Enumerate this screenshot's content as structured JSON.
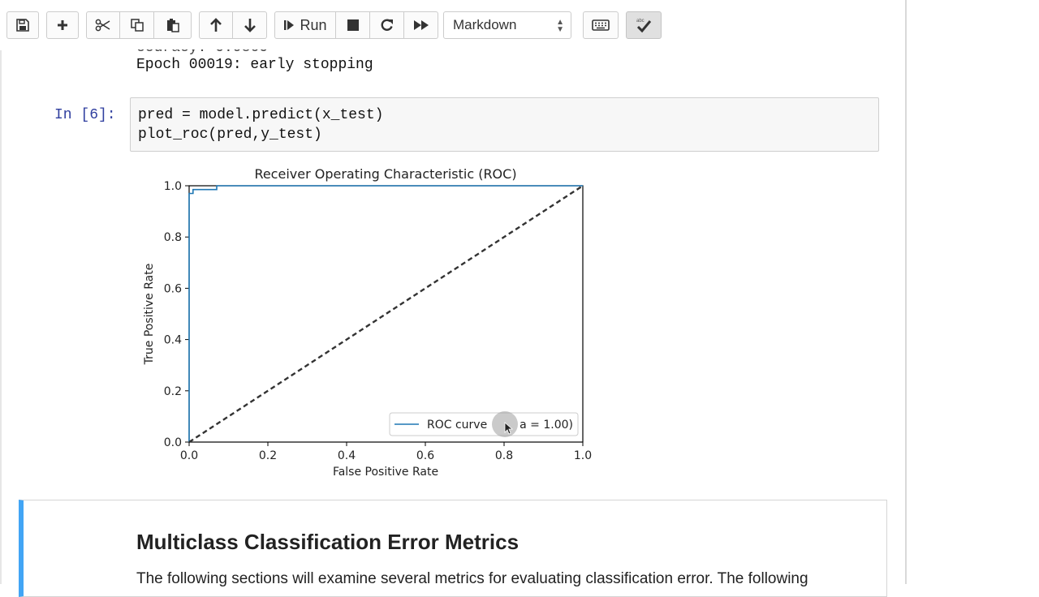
{
  "toolbar": {
    "buttons": [
      {
        "name": "save",
        "icon": "save-icon"
      },
      {
        "name": "insert-cell",
        "icon": "plus-icon"
      },
      {
        "name": "cut",
        "icon": "scissors-icon"
      },
      {
        "name": "copy",
        "icon": "copy-icon"
      },
      {
        "name": "paste",
        "icon": "paste-icon"
      },
      {
        "name": "move-up",
        "icon": "arrow-up-icon"
      },
      {
        "name": "move-down",
        "icon": "arrow-down-icon"
      },
      {
        "name": "run",
        "icon": "step-forward-icon"
      },
      {
        "name": "interrupt",
        "icon": "stop-icon"
      },
      {
        "name": "restart",
        "icon": "refresh-icon"
      },
      {
        "name": "restart-run-all",
        "icon": "fast-forward-icon"
      },
      {
        "name": "command-palette",
        "icon": "keyboard-icon"
      },
      {
        "name": "spellcheck",
        "icon": "spellcheck-icon"
      }
    ],
    "run_label": "Run",
    "cell_type": "Markdown"
  },
  "output": {
    "line1": "ccuracy: 0.9860",
    "line2": "Epoch 00019: early stopping"
  },
  "cell": {
    "prompt": "In [6]:",
    "code_line1": "pred = model.predict(x_test)",
    "code_line2": "plot_roc(pred,y_test)"
  },
  "chart_data": {
    "type": "line",
    "title": "Receiver Operating Characteristic (ROC)",
    "xlabel": "False Positive Rate",
    "ylabel": "True Positive Rate",
    "xlim": [
      0.0,
      1.0
    ],
    "ylim": [
      0.0,
      1.0
    ],
    "xticks": [
      "0.0",
      "0.2",
      "0.4",
      "0.6",
      "0.8",
      "1.0"
    ],
    "yticks": [
      "0.0",
      "0.2",
      "0.4",
      "0.6",
      "0.8",
      "1.0"
    ],
    "series": [
      {
        "name": "ROC curve (area = 1.00)",
        "color": "#1f77b4",
        "style": "solid",
        "x": [
          0.0,
          0.0,
          0.01,
          0.01,
          0.07,
          0.07,
          1.0
        ],
        "y": [
          0.0,
          0.97,
          0.97,
          0.985,
          0.985,
          1.0,
          1.0
        ]
      },
      {
        "color": "#333333",
        "style": "dashed",
        "x": [
          0.0,
          1.0
        ],
        "y": [
          0.0,
          1.0
        ]
      }
    ],
    "legend": {
      "label_visible_start": "ROC curve",
      "label_visible_end": "a = 1.00)",
      "placement": "lower-right"
    },
    "grid": false
  },
  "markdown": {
    "heading": "Multiclass Classification Error Metrics",
    "body": "The following sections will examine several metrics for evaluating classification error. The following"
  }
}
